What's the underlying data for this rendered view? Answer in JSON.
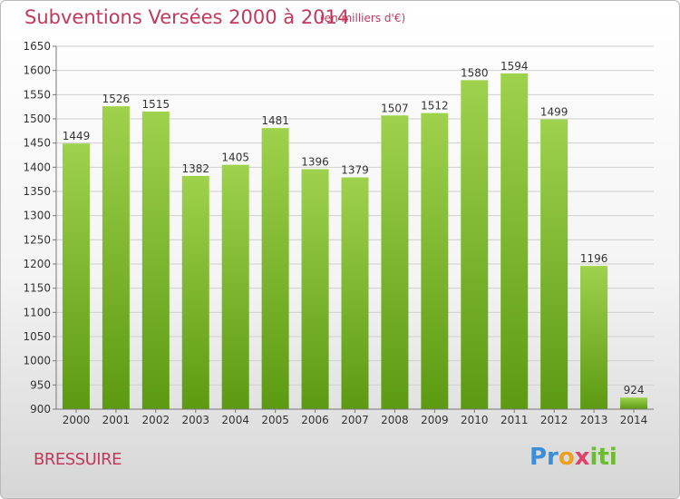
{
  "header": {
    "title": "Subventions Versées 2000 à 2014",
    "subtitle": "(en milliers d'€)"
  },
  "footer": {
    "commune": "BRESSUIRE",
    "logo_parts": [
      "Pr",
      "o",
      "x",
      "iti"
    ]
  },
  "colors": {
    "bar_light": "#9fd24c",
    "bar_dark": "#5c9a12",
    "title": "#c2395b"
  },
  "chart_data": {
    "type": "bar",
    "title": "Subventions Versées 2000 à 2014",
    "subtitle": "(en milliers d'€)",
    "categories": [
      "2000",
      "2001",
      "2002",
      "2003",
      "2004",
      "2005",
      "2006",
      "2007",
      "2008",
      "2009",
      "2010",
      "2011",
      "2012",
      "2013",
      "2014"
    ],
    "values": [
      1449,
      1526,
      1515,
      1382,
      1405,
      1481,
      1396,
      1379,
      1507,
      1512,
      1580,
      1594,
      1499,
      1196,
      924
    ],
    "ylim": [
      900,
      1650
    ],
    "yticks": [
      900,
      950,
      1000,
      1050,
      1100,
      1150,
      1200,
      1250,
      1300,
      1350,
      1400,
      1450,
      1500,
      1550,
      1600,
      1650
    ],
    "grid": true,
    "legend": "none"
  }
}
